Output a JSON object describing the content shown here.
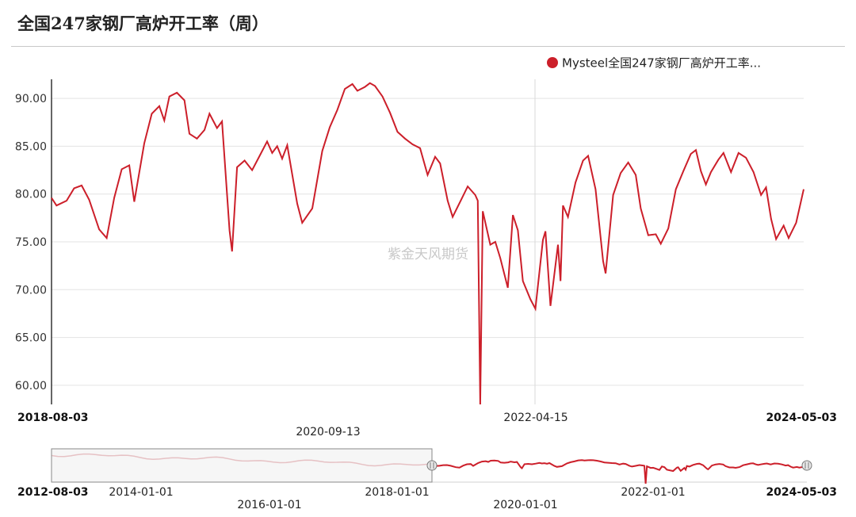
{
  "title": "全国247家钢厂高炉开工率（周）",
  "legend_label": "Mysteel全国247家钢厂高炉开工率...",
  "watermark": "紫金天风期货",
  "colors": {
    "series": "#cc1f2a",
    "grid": "#e3e3e3",
    "navigator_faded": "#eab9bc"
  },
  "main_axis": {
    "start_label": "2018-08-03",
    "end_label": "2024-05-03",
    "mid_labels": [
      "2020-09-13",
      "2022-04-15"
    ]
  },
  "navigator_axis": {
    "start_label": "2012-08-03",
    "end_label": "2024-05-03",
    "tick_labels": [
      "2014-01-01",
      "2016-01-01",
      "2018-01-01",
      "2020-01-01",
      "2022-01-01"
    ]
  },
  "chart_data": {
    "type": "line",
    "title": "全国247家钢厂高炉开工率（周）",
    "ylim": [
      58,
      92
    ],
    "yticks": [
      "60.00",
      "65.00",
      "70.00",
      "75.00",
      "80.00",
      "85.00",
      "90.00"
    ],
    "x_range": [
      "2018-08-03",
      "2024-05-03"
    ],
    "grid": true,
    "legend_position": "top-right",
    "series": [
      {
        "name": "Mysteel全国247家钢厂高炉开工率...",
        "points": [
          [
            "2018-08-03",
            79.6
          ],
          [
            "2018-08-17",
            78.8
          ],
          [
            "2018-09-14",
            79.3
          ],
          [
            "2018-10-05",
            80.6
          ],
          [
            "2018-10-26",
            80.9
          ],
          [
            "2018-11-16",
            79.4
          ],
          [
            "2018-12-14",
            76.3
          ],
          [
            "2019-01-04",
            75.4
          ],
          [
            "2019-01-25",
            79.6
          ],
          [
            "2019-02-15",
            82.6
          ],
          [
            "2019-03-08",
            83.0
          ],
          [
            "2019-03-22",
            79.2
          ],
          [
            "2019-04-19",
            85.3
          ],
          [
            "2019-05-10",
            88.4
          ],
          [
            "2019-05-31",
            89.2
          ],
          [
            "2019-06-14",
            87.7
          ],
          [
            "2019-06-28",
            90.2
          ],
          [
            "2019-07-19",
            90.6
          ],
          [
            "2019-08-09",
            89.8
          ],
          [
            "2019-08-23",
            86.3
          ],
          [
            "2019-09-13",
            85.8
          ],
          [
            "2019-10-04",
            86.7
          ],
          [
            "2019-10-18",
            88.4
          ],
          [
            "2019-11-08",
            86.9
          ],
          [
            "2019-11-22",
            87.6
          ],
          [
            "2019-12-13",
            76.2
          ],
          [
            "2019-12-20",
            74.0
          ],
          [
            "2020-01-03",
            82.8
          ],
          [
            "2020-01-24",
            83.5
          ],
          [
            "2020-02-14",
            82.5
          ],
          [
            "2020-03-06",
            84.0
          ],
          [
            "2020-03-27",
            85.5
          ],
          [
            "2020-04-10",
            84.3
          ],
          [
            "2020-04-24",
            85.0
          ],
          [
            "2020-05-08",
            83.7
          ],
          [
            "2020-05-22",
            85.1
          ],
          [
            "2020-06-19",
            79.0
          ],
          [
            "2020-07-03",
            77.0
          ],
          [
            "2020-07-31",
            78.5
          ],
          [
            "2020-08-28",
            84.5
          ],
          [
            "2020-09-18",
            87.0
          ],
          [
            "2020-10-09",
            88.8
          ],
          [
            "2020-10-30",
            91.0
          ],
          [
            "2020-11-20",
            91.5
          ],
          [
            "2020-12-04",
            90.8
          ],
          [
            "2020-12-25",
            91.2
          ],
          [
            "2021-01-08",
            91.6
          ],
          [
            "2021-01-22",
            91.3
          ],
          [
            "2021-02-12",
            90.2
          ],
          [
            "2021-03-05",
            88.5
          ],
          [
            "2021-03-26",
            86.5
          ],
          [
            "2021-04-16",
            85.8
          ],
          [
            "2021-05-07",
            85.2
          ],
          [
            "2021-05-28",
            84.8
          ],
          [
            "2021-06-18",
            82.0
          ],
          [
            "2021-07-09",
            83.9
          ],
          [
            "2021-07-23",
            83.2
          ],
          [
            "2021-08-13",
            79.3
          ],
          [
            "2021-08-27",
            77.6
          ],
          [
            "2021-09-17",
            79.2
          ],
          [
            "2021-10-08",
            80.8
          ],
          [
            "2021-10-29",
            79.9
          ],
          [
            "2021-11-05",
            79.3
          ],
          [
            "2021-11-12",
            58.0
          ],
          [
            "2021-11-19",
            78.2
          ],
          [
            "2021-12-10",
            74.7
          ],
          [
            "2021-12-24",
            75.0
          ],
          [
            "2022-01-07",
            73.3
          ],
          [
            "2022-01-28",
            70.2
          ],
          [
            "2022-02-11",
            77.8
          ],
          [
            "2022-02-25",
            76.2
          ],
          [
            "2022-03-11",
            70.9
          ],
          [
            "2022-04-01",
            69.0
          ],
          [
            "2022-04-15",
            68.0
          ],
          [
            "2022-05-06",
            75.2
          ],
          [
            "2022-05-13",
            76.1
          ],
          [
            "2022-05-27",
            68.3
          ],
          [
            "2022-06-17",
            74.7
          ],
          [
            "2022-06-24",
            70.9
          ],
          [
            "2022-07-01",
            78.8
          ],
          [
            "2022-07-15",
            77.6
          ],
          [
            "2022-08-05",
            81.2
          ],
          [
            "2022-08-26",
            83.5
          ],
          [
            "2022-09-09",
            84.0
          ],
          [
            "2022-09-30",
            80.5
          ],
          [
            "2022-10-21",
            73.0
          ],
          [
            "2022-10-28",
            71.7
          ],
          [
            "2022-11-18",
            79.9
          ],
          [
            "2022-12-09",
            82.2
          ],
          [
            "2022-12-30",
            83.3
          ],
          [
            "2023-01-20",
            82.0
          ],
          [
            "2023-02-03",
            78.5
          ],
          [
            "2023-02-24",
            75.7
          ],
          [
            "2023-03-17",
            75.8
          ],
          [
            "2023-03-31",
            74.8
          ],
          [
            "2023-04-21",
            76.4
          ],
          [
            "2023-05-12",
            80.5
          ],
          [
            "2023-06-02",
            82.4
          ],
          [
            "2023-06-23",
            84.2
          ],
          [
            "2023-07-07",
            84.6
          ],
          [
            "2023-07-21",
            82.4
          ],
          [
            "2023-08-04",
            81.0
          ],
          [
            "2023-08-18",
            82.3
          ],
          [
            "2023-09-08",
            83.6
          ],
          [
            "2023-09-22",
            84.3
          ],
          [
            "2023-10-13",
            82.3
          ],
          [
            "2023-11-03",
            84.3
          ],
          [
            "2023-11-24",
            83.8
          ],
          [
            "2023-12-15",
            82.3
          ],
          [
            "2024-01-05",
            79.9
          ],
          [
            "2024-01-19",
            80.7
          ],
          [
            "2024-02-02",
            77.4
          ],
          [
            "2024-02-16",
            75.3
          ],
          [
            "2024-03-08",
            76.7
          ],
          [
            "2024-03-22",
            75.4
          ],
          [
            "2024-04-12",
            77.0
          ],
          [
            "2024-05-03",
            80.5
          ]
        ]
      }
    ]
  }
}
